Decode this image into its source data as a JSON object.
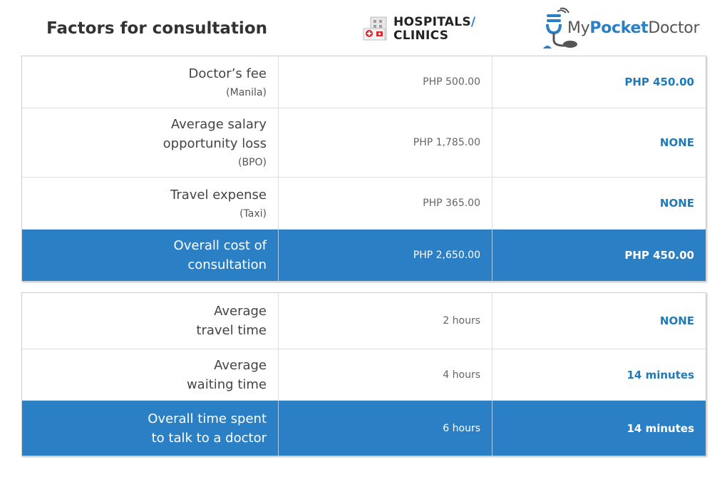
{
  "header": {
    "title": "Factors for consultation",
    "hospitals_logo": {
      "line1": "HOSPITALS",
      "slash": "/",
      "line2": "CLINICS"
    },
    "mpd_logo": {
      "part1": "My",
      "part2": "Pocket",
      "part3": "Doctor"
    }
  },
  "cost_table": {
    "rows": [
      {
        "label": "Doctor’s fee",
        "sub": "(Manila)",
        "hospital": "PHP 500.00",
        "mpd": "PHP 450.00"
      },
      {
        "label_line1": "Average salary",
        "label_line2": "opportunity loss",
        "sub": "(BPO)",
        "hospital": "PHP 1,785.00",
        "mpd": "NONE"
      },
      {
        "label": "Travel expense",
        "sub": "(Taxi)",
        "hospital": "PHP 365.00",
        "mpd": "NONE"
      }
    ],
    "total": {
      "label_line1": "Overall cost of",
      "label_line2": "consultation",
      "hospital": "PHP 2,650.00",
      "mpd": "PHP 450.00"
    }
  },
  "time_table": {
    "rows": [
      {
        "label_line1": "Average",
        "label_line2": "travel time",
        "hospital": "2 hours",
        "mpd": "NONE"
      },
      {
        "label_line1": "Average",
        "label_line2": "waiting time",
        "hospital": "4 hours",
        "mpd": "14 minutes"
      }
    ],
    "total": {
      "label_line1": "Overall time spent",
      "label_line2": "to talk to a doctor",
      "hospital": "6 hours",
      "mpd": "14 minutes"
    }
  },
  "colors": {
    "accent": "#2b7fc4",
    "value_text": "#1f7ab8"
  }
}
